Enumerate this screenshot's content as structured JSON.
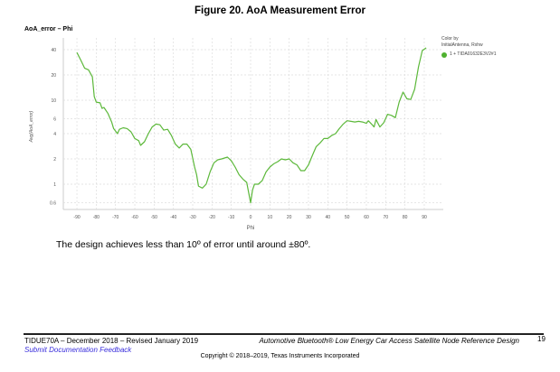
{
  "figure_title": "Figure 20. AoA Measurement Error",
  "chart_data": {
    "type": "line",
    "title": "AoA_error – Phi",
    "xlabel": "Phi",
    "ylabel": "Avg(AoA_error)",
    "yscale": "log",
    "xlim": [
      -96,
      96
    ],
    "ylim": [
      0.5,
      50
    ],
    "xticks": [
      -90,
      -80,
      -70,
      -60,
      -50,
      -40,
      -30,
      -20,
      -10,
      0,
      10,
      20,
      30,
      40,
      50,
      60,
      70,
      80,
      90
    ],
    "yticks": [
      0.6,
      1,
      2,
      4,
      6,
      10,
      20,
      40
    ],
    "ytick_labels": [
      "0.6",
      "1",
      "2",
      "4",
      "6",
      "10",
      "20",
      "40"
    ],
    "grid": true,
    "legend": {
      "title_line1": "Color by",
      "title_line2": "InitialAntenna, Rxhw",
      "entry": "1 + TIDA01632E3V2#1",
      "placement": "top-right"
    },
    "series": [
      {
        "name": "1 + TIDA01632E3V2#1",
        "color": "#5cb83a",
        "x": [
          -90,
          -88,
          -86,
          -84,
          -82,
          -81,
          -80,
          -78,
          -77,
          -76,
          -74,
          -72,
          -71,
          -70,
          -69,
          -68,
          -66,
          -64,
          -62,
          -60,
          -58,
          -57,
          -55,
          -53,
          -51,
          -49,
          -47,
          -45,
          -43,
          -41,
          -39,
          -37,
          -35,
          -33,
          -31,
          -29,
          -28,
          -27,
          -25,
          -23,
          -21,
          -19,
          -17,
          -15,
          -12,
          -10,
          -8,
          -6,
          -4,
          -2,
          0,
          1,
          2,
          4,
          6,
          8,
          10,
          12,
          14,
          16,
          18,
          20,
          22,
          24,
          26,
          28,
          30,
          32,
          34,
          36,
          38,
          40,
          42,
          44,
          46,
          48,
          50,
          52,
          54,
          56,
          58,
          60,
          61,
          63,
          64,
          65,
          67,
          69,
          71,
          73,
          75,
          77,
          79,
          81,
          83,
          85,
          87,
          89,
          91
        ],
        "y": [
          37,
          30,
          24,
          23,
          19,
          11,
          9.5,
          9.3,
          8,
          8.2,
          7,
          5.5,
          4.6,
          4.3,
          4.0,
          4.5,
          4.7,
          4.6,
          4.2,
          3.5,
          3.3,
          2.9,
          3.2,
          4,
          4.8,
          5.2,
          5.1,
          4.4,
          4.5,
          3.8,
          3.0,
          2.7,
          3.0,
          3.0,
          2.6,
          1.6,
          1.3,
          0.95,
          0.9,
          1.0,
          1.4,
          1.8,
          1.95,
          2.0,
          2.1,
          1.9,
          1.6,
          1.3,
          1.15,
          1.05,
          0.6,
          0.85,
          1.0,
          1.0,
          1.1,
          1.4,
          1.6,
          1.75,
          1.85,
          2.0,
          1.95,
          2.0,
          1.8,
          1.7,
          1.45,
          1.45,
          1.7,
          2.2,
          2.8,
          3.1,
          3.5,
          3.5,
          3.8,
          4.0,
          4.6,
          5.2,
          5.7,
          5.6,
          5.5,
          5.6,
          5.5,
          5.3,
          5.7,
          5.1,
          4.8,
          5.9,
          4.8,
          5.4,
          6.8,
          6.6,
          6.2,
          9.5,
          12.5,
          10.4,
          10.2,
          13.5,
          25,
          39,
          42
        ]
      }
    ]
  },
  "body_text": "The design achieves less than 10º of error until around ±80º.",
  "footer": {
    "doc_id": "TIDUE70A – December 2018 – Revised January 2019",
    "feedback_link": "Submit Documentation Feedback",
    "doc_title": "Automotive Bluetooth® Low Energy Car Access Satellite Node Reference Design",
    "page_number": "19",
    "copyright": "Copyright © 2018–2019, Texas Instruments Incorporated"
  }
}
